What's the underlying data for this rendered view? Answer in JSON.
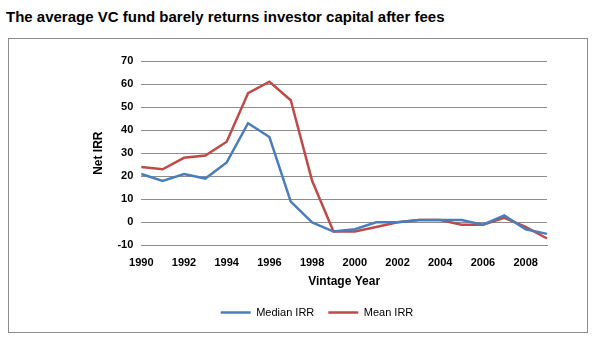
{
  "chart_data": {
    "type": "line",
    "title": "The average VC fund barely returns investor capital after fees",
    "x_label": "Vintage Year",
    "y_label": "Net IRR",
    "categories": [
      1990,
      null,
      1992,
      null,
      1994,
      null,
      1996,
      null,
      1998,
      null,
      2000,
      null,
      2002,
      null,
      2004,
      null,
      2006,
      null,
      2008,
      null
    ],
    "series": [
      {
        "name": "Median IRR",
        "color": "#4a7ebb",
        "values": [
          21,
          18,
          21,
          19,
          26,
          43,
          37,
          9,
          0,
          -4,
          -3,
          0,
          0,
          1,
          1,
          1,
          -1,
          3,
          -3,
          -5
        ]
      },
      {
        "name": "Mean IRR",
        "color": "#be4b48",
        "values": [
          24,
          23,
          28,
          29,
          35,
          56,
          61,
          53,
          18,
          -4,
          -4,
          -2,
          0,
          1,
          1,
          -1,
          -1,
          2,
          -2,
          -7
        ]
      }
    ],
    "ylim": [
      -10,
      70
    ],
    "yticks": [
      -10,
      0,
      10,
      20,
      30,
      40,
      50,
      60,
      70
    ],
    "grid": true,
    "legend": "bottom"
  }
}
